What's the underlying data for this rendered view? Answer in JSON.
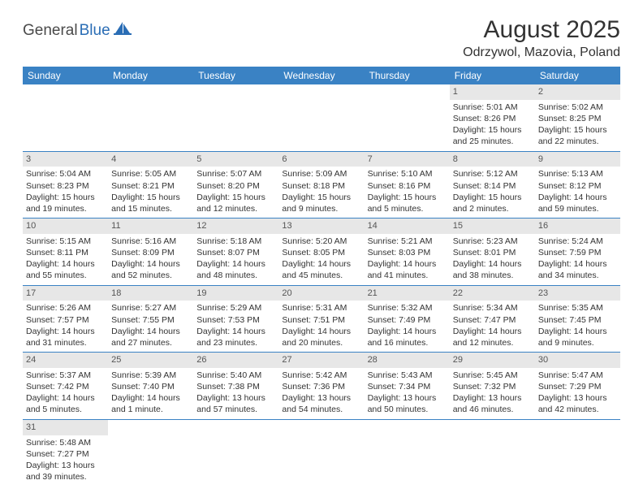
{
  "logo": {
    "part1": "General",
    "part2": "Blue"
  },
  "title": "August 2025",
  "location": "Odrzywol, Mazovia, Poland",
  "colors": {
    "header_bg": "#3a82c4",
    "header_fg": "#ffffff",
    "daynum_bg": "#e7e7e7",
    "rule": "#3a82c4",
    "logo_blue": "#2a6db5",
    "logo_gray": "#4a4a4a"
  },
  "weekdays": [
    "Sunday",
    "Monday",
    "Tuesday",
    "Wednesday",
    "Thursday",
    "Friday",
    "Saturday"
  ],
  "weeks": [
    [
      null,
      null,
      null,
      null,
      null,
      {
        "n": "1",
        "sr": "Sunrise: 5:01 AM",
        "ss": "Sunset: 8:26 PM",
        "dl": "Daylight: 15 hours and 25 minutes."
      },
      {
        "n": "2",
        "sr": "Sunrise: 5:02 AM",
        "ss": "Sunset: 8:25 PM",
        "dl": "Daylight: 15 hours and 22 minutes."
      }
    ],
    [
      {
        "n": "3",
        "sr": "Sunrise: 5:04 AM",
        "ss": "Sunset: 8:23 PM",
        "dl": "Daylight: 15 hours and 19 minutes."
      },
      {
        "n": "4",
        "sr": "Sunrise: 5:05 AM",
        "ss": "Sunset: 8:21 PM",
        "dl": "Daylight: 15 hours and 15 minutes."
      },
      {
        "n": "5",
        "sr": "Sunrise: 5:07 AM",
        "ss": "Sunset: 8:20 PM",
        "dl": "Daylight: 15 hours and 12 minutes."
      },
      {
        "n": "6",
        "sr": "Sunrise: 5:09 AM",
        "ss": "Sunset: 8:18 PM",
        "dl": "Daylight: 15 hours and 9 minutes."
      },
      {
        "n": "7",
        "sr": "Sunrise: 5:10 AM",
        "ss": "Sunset: 8:16 PM",
        "dl": "Daylight: 15 hours and 5 minutes."
      },
      {
        "n": "8",
        "sr": "Sunrise: 5:12 AM",
        "ss": "Sunset: 8:14 PM",
        "dl": "Daylight: 15 hours and 2 minutes."
      },
      {
        "n": "9",
        "sr": "Sunrise: 5:13 AM",
        "ss": "Sunset: 8:12 PM",
        "dl": "Daylight: 14 hours and 59 minutes."
      }
    ],
    [
      {
        "n": "10",
        "sr": "Sunrise: 5:15 AM",
        "ss": "Sunset: 8:11 PM",
        "dl": "Daylight: 14 hours and 55 minutes."
      },
      {
        "n": "11",
        "sr": "Sunrise: 5:16 AM",
        "ss": "Sunset: 8:09 PM",
        "dl": "Daylight: 14 hours and 52 minutes."
      },
      {
        "n": "12",
        "sr": "Sunrise: 5:18 AM",
        "ss": "Sunset: 8:07 PM",
        "dl": "Daylight: 14 hours and 48 minutes."
      },
      {
        "n": "13",
        "sr": "Sunrise: 5:20 AM",
        "ss": "Sunset: 8:05 PM",
        "dl": "Daylight: 14 hours and 45 minutes."
      },
      {
        "n": "14",
        "sr": "Sunrise: 5:21 AM",
        "ss": "Sunset: 8:03 PM",
        "dl": "Daylight: 14 hours and 41 minutes."
      },
      {
        "n": "15",
        "sr": "Sunrise: 5:23 AM",
        "ss": "Sunset: 8:01 PM",
        "dl": "Daylight: 14 hours and 38 minutes."
      },
      {
        "n": "16",
        "sr": "Sunrise: 5:24 AM",
        "ss": "Sunset: 7:59 PM",
        "dl": "Daylight: 14 hours and 34 minutes."
      }
    ],
    [
      {
        "n": "17",
        "sr": "Sunrise: 5:26 AM",
        "ss": "Sunset: 7:57 PM",
        "dl": "Daylight: 14 hours and 31 minutes."
      },
      {
        "n": "18",
        "sr": "Sunrise: 5:27 AM",
        "ss": "Sunset: 7:55 PM",
        "dl": "Daylight: 14 hours and 27 minutes."
      },
      {
        "n": "19",
        "sr": "Sunrise: 5:29 AM",
        "ss": "Sunset: 7:53 PM",
        "dl": "Daylight: 14 hours and 23 minutes."
      },
      {
        "n": "20",
        "sr": "Sunrise: 5:31 AM",
        "ss": "Sunset: 7:51 PM",
        "dl": "Daylight: 14 hours and 20 minutes."
      },
      {
        "n": "21",
        "sr": "Sunrise: 5:32 AM",
        "ss": "Sunset: 7:49 PM",
        "dl": "Daylight: 14 hours and 16 minutes."
      },
      {
        "n": "22",
        "sr": "Sunrise: 5:34 AM",
        "ss": "Sunset: 7:47 PM",
        "dl": "Daylight: 14 hours and 12 minutes."
      },
      {
        "n": "23",
        "sr": "Sunrise: 5:35 AM",
        "ss": "Sunset: 7:45 PM",
        "dl": "Daylight: 14 hours and 9 minutes."
      }
    ],
    [
      {
        "n": "24",
        "sr": "Sunrise: 5:37 AM",
        "ss": "Sunset: 7:42 PM",
        "dl": "Daylight: 14 hours and 5 minutes."
      },
      {
        "n": "25",
        "sr": "Sunrise: 5:39 AM",
        "ss": "Sunset: 7:40 PM",
        "dl": "Daylight: 14 hours and 1 minute."
      },
      {
        "n": "26",
        "sr": "Sunrise: 5:40 AM",
        "ss": "Sunset: 7:38 PM",
        "dl": "Daylight: 13 hours and 57 minutes."
      },
      {
        "n": "27",
        "sr": "Sunrise: 5:42 AM",
        "ss": "Sunset: 7:36 PM",
        "dl": "Daylight: 13 hours and 54 minutes."
      },
      {
        "n": "28",
        "sr": "Sunrise: 5:43 AM",
        "ss": "Sunset: 7:34 PM",
        "dl": "Daylight: 13 hours and 50 minutes."
      },
      {
        "n": "29",
        "sr": "Sunrise: 5:45 AM",
        "ss": "Sunset: 7:32 PM",
        "dl": "Daylight: 13 hours and 46 minutes."
      },
      {
        "n": "30",
        "sr": "Sunrise: 5:47 AM",
        "ss": "Sunset: 7:29 PM",
        "dl": "Daylight: 13 hours and 42 minutes."
      }
    ],
    [
      {
        "n": "31",
        "sr": "Sunrise: 5:48 AM",
        "ss": "Sunset: 7:27 PM",
        "dl": "Daylight: 13 hours and 39 minutes."
      },
      null,
      null,
      null,
      null,
      null,
      null
    ]
  ]
}
